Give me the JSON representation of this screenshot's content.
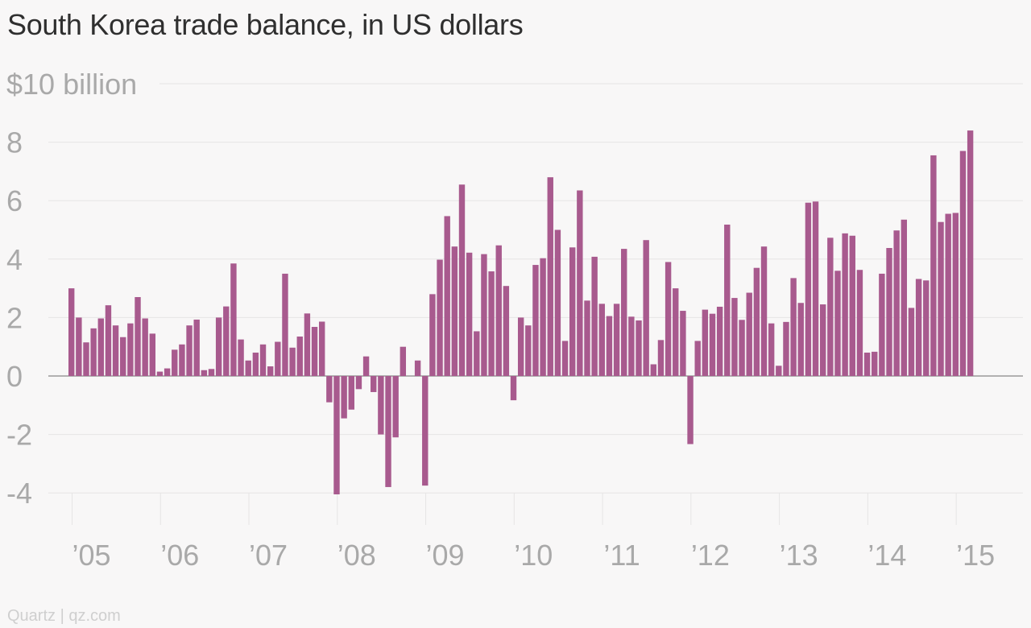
{
  "chart_data": {
    "type": "bar",
    "title": "South Korea trade balance, in US dollars",
    "unit_label": "$10 billion",
    "credit": "Quartz | qz.com",
    "color": "#a85a8e",
    "grid": true,
    "ylim": [
      -4,
      10
    ],
    "y_ticks": [
      {
        "value": 10,
        "label": "$10 billion"
      },
      {
        "value": 8,
        "label": "8"
      },
      {
        "value": 6,
        "label": "6"
      },
      {
        "value": 4,
        "label": "4"
      },
      {
        "value": 2,
        "label": "2"
      },
      {
        "value": 0,
        "label": "0"
      },
      {
        "value": -2,
        "label": "-2"
      },
      {
        "value": -4,
        "label": "-4"
      }
    ],
    "x_ticks": [
      "’05",
      "’06",
      "’07",
      "’08",
      "’09",
      "’10",
      "’11",
      "’12",
      "’13",
      "’14",
      "’15"
    ],
    "start": "2005-01",
    "values": [
      3.0,
      2.0,
      1.15,
      1.63,
      1.97,
      2.42,
      1.73,
      1.33,
      1.8,
      2.7,
      1.97,
      1.45,
      0.15,
      0.26,
      0.9,
      1.08,
      1.73,
      1.93,
      0.2,
      0.24,
      2.0,
      2.38,
      3.85,
      1.25,
      0.53,
      0.8,
      1.08,
      0.33,
      1.17,
      3.5,
      0.97,
      1.35,
      2.14,
      1.68,
      1.86,
      -0.9,
      -4.05,
      -1.45,
      -1.15,
      -0.45,
      0.67,
      -0.55,
      -2.0,
      -3.8,
      -2.1,
      1.0,
      0.0,
      0.53,
      -3.75,
      2.8,
      3.98,
      5.47,
      4.43,
      6.55,
      4.22,
      1.53,
      4.17,
      3.58,
      4.47,
      3.08,
      -0.83,
      2.0,
      1.73,
      3.8,
      4.03,
      6.8,
      5.0,
      1.2,
      4.4,
      6.35,
      2.58,
      4.08,
      2.47,
      2.05,
      2.47,
      4.35,
      2.03,
      1.9,
      4.65,
      0.4,
      1.23,
      3.9,
      3.0,
      2.23,
      -2.33,
      1.2,
      2.27,
      2.13,
      2.37,
      5.18,
      2.67,
      1.92,
      2.85,
      3.7,
      4.43,
      1.8,
      0.35,
      1.85,
      3.35,
      2.5,
      5.93,
      5.97,
      2.45,
      4.73,
      3.6,
      4.88,
      4.8,
      3.63,
      0.8,
      0.83,
      3.5,
      4.38,
      4.98,
      5.35,
      2.33,
      3.32,
      3.27,
      7.55,
      5.27,
      5.55,
      5.58,
      7.7,
      8.4
    ]
  }
}
